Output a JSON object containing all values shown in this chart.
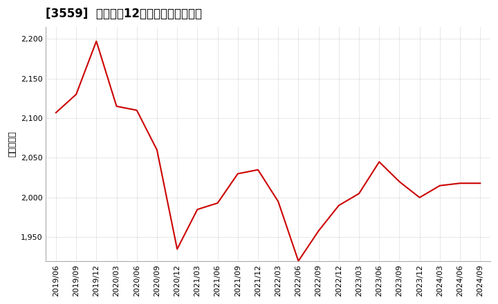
{
  "title": "[3559]  売上高の12か月移動合計の推移",
  "ylabel": "（百万円）",
  "line_color": "#cc0000",
  "background_color": "#ffffff",
  "grid_color": "#999999",
  "ylim": [
    1920,
    2215
  ],
  "yticks": [
    1950,
    2000,
    2050,
    2100,
    2150,
    2200
  ],
  "dates": [
    "2019/06",
    "2019/09",
    "2019/12",
    "2020/03",
    "2020/06",
    "2020/09",
    "2020/12",
    "2021/03",
    "2021/06",
    "2021/09",
    "2021/12",
    "2022/03",
    "2022/06",
    "2022/09",
    "2022/12",
    "2023/03",
    "2023/06",
    "2023/09",
    "2023/12",
    "2024/03",
    "2024/06",
    "2024/09"
  ],
  "values": [
    2107,
    2130,
    2197,
    2115,
    2110,
    2060,
    1935,
    1985,
    1993,
    2030,
    2035,
    1995,
    1920,
    1958,
    1990,
    2005,
    2045,
    2020,
    2000,
    2015,
    2018,
    2018
  ],
  "title_fontsize": 12,
  "label_fontsize": 9,
  "tick_fontsize": 8
}
